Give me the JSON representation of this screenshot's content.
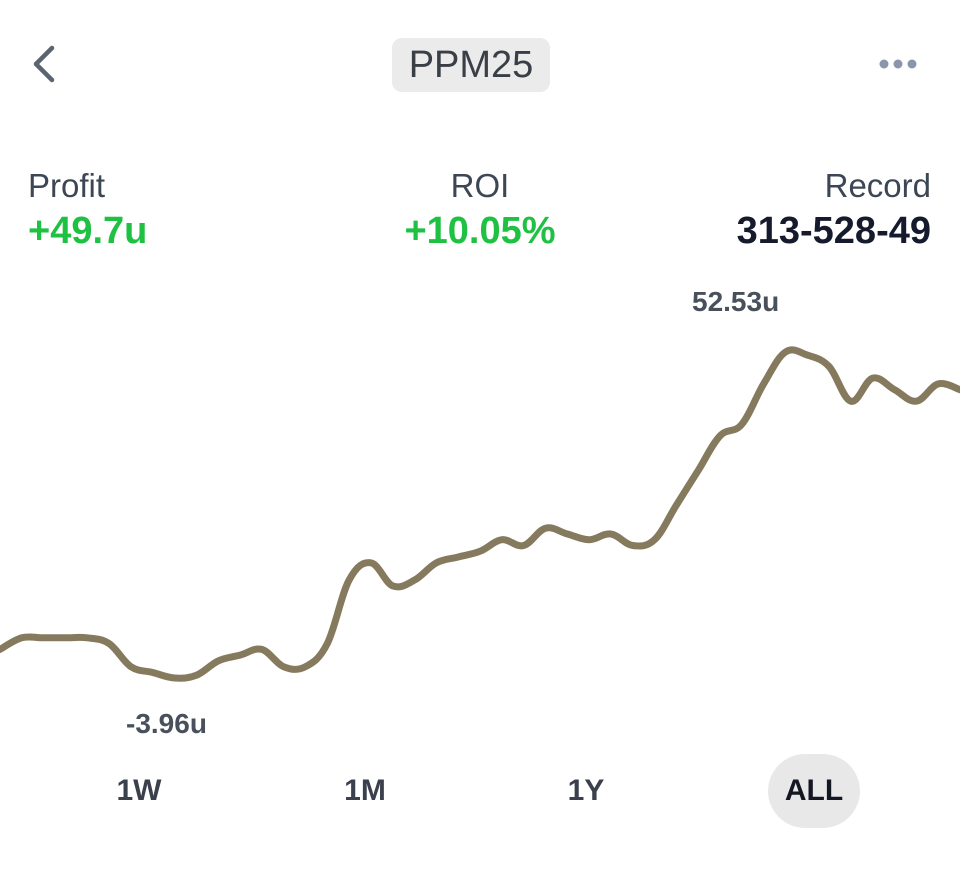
{
  "header": {
    "back_icon": "chevron-left-icon",
    "title": "PPM25",
    "more_icon": "ellipsis-horizontal-icon"
  },
  "stats": {
    "profit": {
      "label": "Profit",
      "value": "+49.7u"
    },
    "roi": {
      "label": "ROI",
      "value": "+10.05%"
    },
    "record": {
      "label": "Record",
      "value": "313-528-49"
    }
  },
  "chart": {
    "max_label": "52.53u",
    "min_label": "-3.96u"
  },
  "colors": {
    "positive": "#1fc142",
    "line": "#857a5e",
    "pill_bg": "#ebebeb"
  },
  "chart_data": {
    "type": "line",
    "title": "",
    "xlabel": "",
    "ylabel": "",
    "ylim": [
      -6,
      56
    ],
    "max_value": 52.53,
    "min_value": -3.96,
    "series": [
      {
        "values": [
          1,
          3,
          3,
          3,
          3,
          2,
          -2,
          -3,
          -3.96,
          -3.5,
          -1,
          0,
          1,
          -2,
          -2,
          2,
          13,
          16,
          12,
          13,
          16,
          17,
          18,
          20,
          19,
          22,
          21,
          20,
          21,
          19,
          20,
          26,
          32,
          38,
          40,
          47,
          52.53,
          52,
          50,
          44,
          48,
          46,
          44,
          47,
          46
        ]
      }
    ]
  },
  "range_tabs": {
    "items": [
      {
        "label": "1W"
      },
      {
        "label": "1M"
      },
      {
        "label": "1Y"
      },
      {
        "label": "ALL"
      }
    ],
    "active": "ALL"
  }
}
